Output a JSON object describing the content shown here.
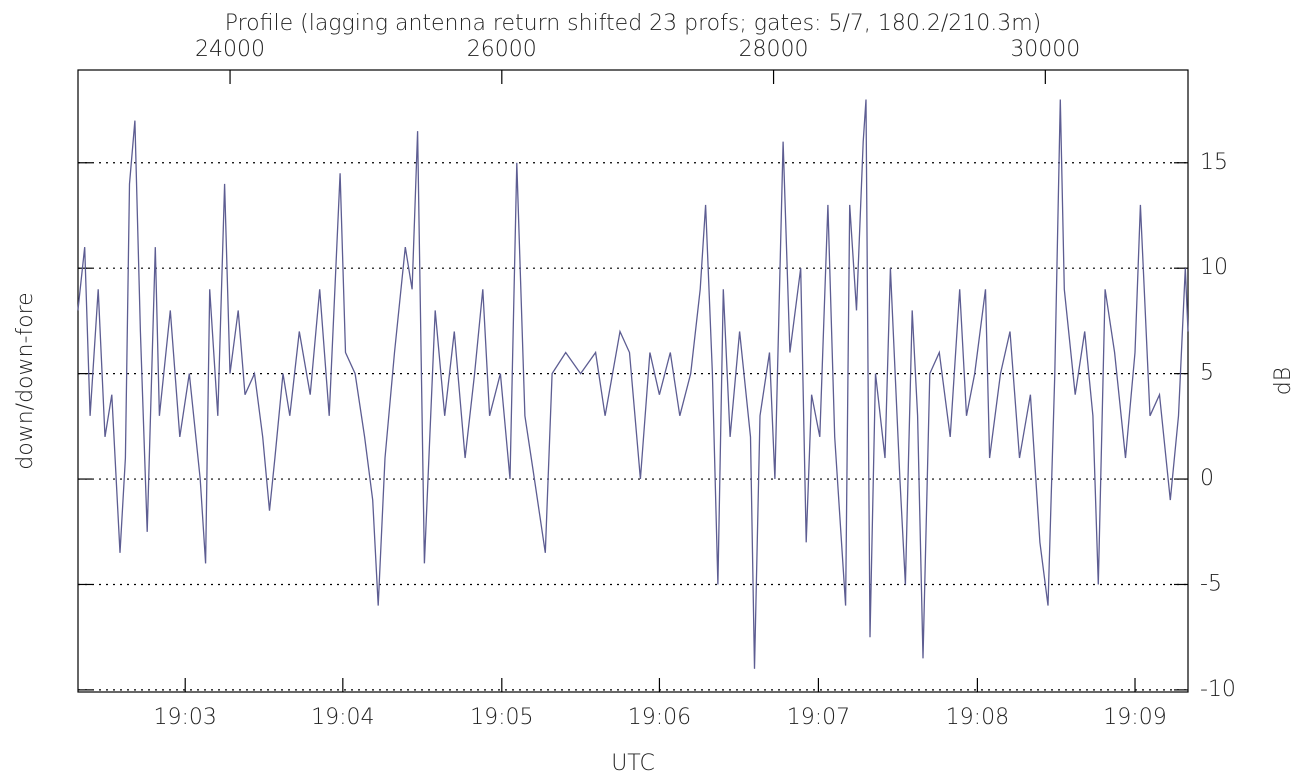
{
  "chart_data": {
    "type": "line",
    "title": "Profile (lagging antenna return shifted 23 profs; gates: 5/7, 180.2/210.3m)",
    "ylabel": "down/down-fore",
    "ylabel_right": "dB",
    "xlabel": "UTC",
    "xlim": [
      22881,
      31050
    ],
    "xticks": [
      24000,
      26000,
      28000,
      30000
    ],
    "x2ticks": [
      {
        "value": 23670,
        "label": "19:03"
      },
      {
        "value": 24830,
        "label": "19:04"
      },
      {
        "value": 26000,
        "label": "19:05"
      },
      {
        "value": 27160,
        "label": "19:06"
      },
      {
        "value": 28330,
        "label": "19:07"
      },
      {
        "value": 29500,
        "label": "19:08"
      },
      {
        "value": 30660,
        "label": "19:09"
      }
    ],
    "ylim": [
      -10.1,
      19.4
    ],
    "yticks": [
      -10,
      -5,
      0,
      5,
      10,
      15
    ],
    "grid": true,
    "series": [
      {
        "color": "#5d5d92",
        "x": [
          22880,
          22930,
          22970,
          23030,
          23080,
          23130,
          23190,
          23230,
          23260,
          23300,
          23340,
          23390,
          23450,
          23480,
          23560,
          23630,
          23700,
          23780,
          23820,
          23850,
          23910,
          23960,
          24000,
          24060,
          24110,
          24180,
          24240,
          24290,
          24330,
          24390,
          24440,
          24510,
          24590,
          24660,
          24730,
          24810,
          24850,
          24920,
          24990,
          25050,
          25090,
          25140,
          25210,
          25290,
          25340,
          25380,
          25430,
          25510,
          25580,
          25650,
          25730,
          25800,
          25860,
          25910,
          25990,
          26060,
          26110,
          26170,
          26240,
          26320,
          26370,
          26470,
          26580,
          26690,
          26760,
          26870,
          26940,
          27020,
          27090,
          27160,
          27240,
          27310,
          27390,
          27460,
          27500,
          27550,
          27590,
          27630,
          27680,
          27750,
          27830,
          27860,
          27900,
          27970,
          28010,
          28070,
          28120,
          28200,
          28240,
          28280,
          28340,
          28400,
          28450,
          28530,
          28560,
          28610,
          28660,
          28680,
          28710,
          28750,
          28820,
          28860,
          28930,
          28970,
          29020,
          29060,
          29100,
          29150,
          29220,
          29300,
          29370,
          29420,
          29480,
          29560,
          29590,
          29670,
          29740,
          29810,
          29890,
          29960,
          30020,
          30070,
          30110,
          30140,
          30220,
          30290,
          30350,
          30390,
          30440,
          30510,
          30590,
          30660,
          30700,
          30770,
          30840,
          30920,
          30980,
          31030,
          31050
        ],
        "values": [
          8,
          11,
          3,
          9,
          2,
          4,
          -3.5,
          1,
          14,
          17,
          7,
          -2.5,
          11,
          3,
          8,
          2,
          5,
          0,
          -4,
          9,
          3,
          14,
          5,
          8,
          4,
          5,
          2,
          -1.5,
          1,
          5,
          3,
          7,
          4,
          9,
          3,
          14.5,
          6,
          5,
          2,
          -1,
          -6,
          1,
          6,
          11,
          9,
          16.5,
          -4,
          8,
          3,
          7,
          1,
          5,
          9,
          3,
          5,
          0,
          15,
          3,
          0,
          -3.5,
          5,
          6,
          5,
          6,
          3,
          7,
          6,
          0,
          6,
          4,
          6,
          3,
          5,
          9,
          13,
          5,
          -5,
          9,
          2,
          7,
          2,
          -9,
          3,
          6,
          0,
          16,
          6,
          10,
          -3,
          4,
          2,
          13,
          2,
          -6,
          13,
          8,
          16,
          18,
          -7.5,
          5,
          1,
          10,
          0,
          -5,
          8,
          3,
          -8.5,
          5,
          6,
          2,
          9,
          3,
          5,
          9,
          1,
          5,
          7,
          1,
          4,
          -3,
          -6,
          5,
          18,
          9,
          4,
          7,
          3,
          -5,
          9,
          6,
          1,
          6,
          13,
          3,
          4,
          -1,
          3,
          10,
          7
        ]
      }
    ]
  }
}
